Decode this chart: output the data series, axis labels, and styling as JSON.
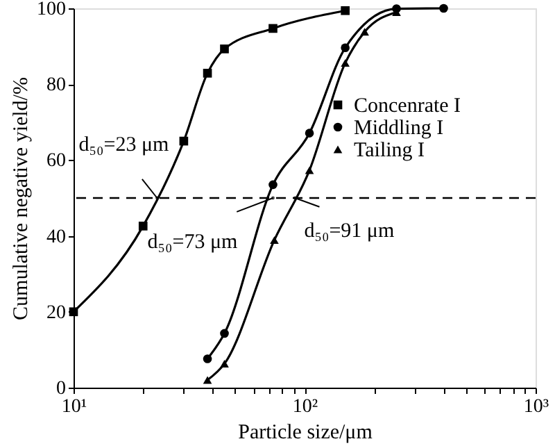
{
  "chart_data": {
    "type": "line",
    "xlabel": "Particle size/μm",
    "ylabel": "Cumulative negative yield/%",
    "log": "x",
    "xlim": [
      10,
      1000
    ],
    "ylim": [
      0,
      100
    ],
    "xticks": [
      {
        "value": 10,
        "label": "10¹"
      },
      {
        "value": 20,
        "label": null
      },
      {
        "value": 30,
        "label": null
      },
      {
        "value": 40,
        "label": null
      },
      {
        "value": 50,
        "label": null
      },
      {
        "value": 60,
        "label": null
      },
      {
        "value": 70,
        "label": null
      },
      {
        "value": 80,
        "label": null
      },
      {
        "value": 90,
        "label": null
      },
      {
        "value": 100,
        "label": "10²"
      },
      {
        "value": 200,
        "label": null
      },
      {
        "value": 300,
        "label": null
      },
      {
        "value": 400,
        "label": null
      },
      {
        "value": 500,
        "label": null
      },
      {
        "value": 600,
        "label": null
      },
      {
        "value": 700,
        "label": null
      },
      {
        "value": 800,
        "label": null
      },
      {
        "value": 900,
        "label": null
      },
      {
        "value": 1000,
        "label": "10³"
      }
    ],
    "yticks": [
      0,
      20,
      40,
      60,
      80,
      100
    ],
    "grid": false,
    "legend": "top right",
    "line_style": "solid",
    "series": [
      {
        "name": "Concenrate I",
        "color": "#000000",
        "marker": "square",
        "x": [
          10,
          20,
          30,
          38,
          45,
          73,
          150
        ],
        "values": [
          20,
          42.6,
          65,
          82.9,
          89.3,
          94.7,
          99.4
        ]
      },
      {
        "name": "Middling I",
        "color": "#000000",
        "marker": "circle",
        "x": [
          38,
          45,
          73,
          105,
          150,
          250,
          400
        ],
        "values": [
          7.6,
          14.3,
          53.5,
          67.1,
          89.6,
          99.9,
          100
        ]
      },
      {
        "name": "Tailing I",
        "color": "#000000",
        "marker": "triangle",
        "x": [
          38,
          45,
          74,
          105,
          150,
          182,
          250
        ],
        "values": [
          2,
          6.3,
          38.9,
          57.3,
          85.6,
          93.8,
          99
        ]
      }
    ],
    "ref_lines": [
      {
        "axis": "y",
        "value": 50,
        "line_style": "dashed",
        "color": "#000000"
      }
    ],
    "annotations": [
      {
        "text": "d₅₀=23 μm",
        "x": 23,
        "y": 50
      },
      {
        "text": "d₅₀=73 μm",
        "x": 73,
        "y": 50
      },
      {
        "text": "d₅₀=91 μm",
        "x": 91,
        "y": 50
      }
    ]
  }
}
